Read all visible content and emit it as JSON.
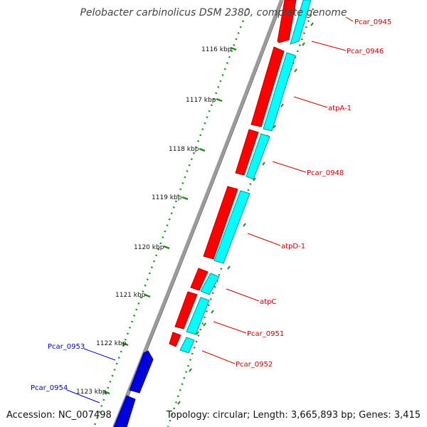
{
  "title": "Pelobacter carbinolicus DSM 2380, complete genome",
  "accession": "Accession: NC_007498",
  "topology": "Topology: circular; Length: 3,665,893 bp; Genes: 3,415",
  "colors": {
    "forward_gene": "#ff0000",
    "reverse_gene": "#0000dd",
    "cds_track": "#00ffff",
    "backbone": "#888888",
    "tick": "#228b22",
    "forward_label": "#cc0000",
    "reverse_label": "#0000cc"
  },
  "ticks": [
    "1116 kbp",
    "1117 kbp",
    "1118 kbp",
    "1119 kbp",
    "1120 kbp",
    "1121 kbp",
    "1122 kbp",
    "1123 kbp"
  ],
  "forward_labels": [
    "Pcar_0945",
    "Pcar_0946",
    "atpA-1",
    "Pcar_0948",
    "atpD-1",
    "atpC",
    "Pcar_0951",
    "Pcar_0952"
  ],
  "reverse_labels": [
    "Pcar_0953",
    "Pcar_0954"
  ]
}
